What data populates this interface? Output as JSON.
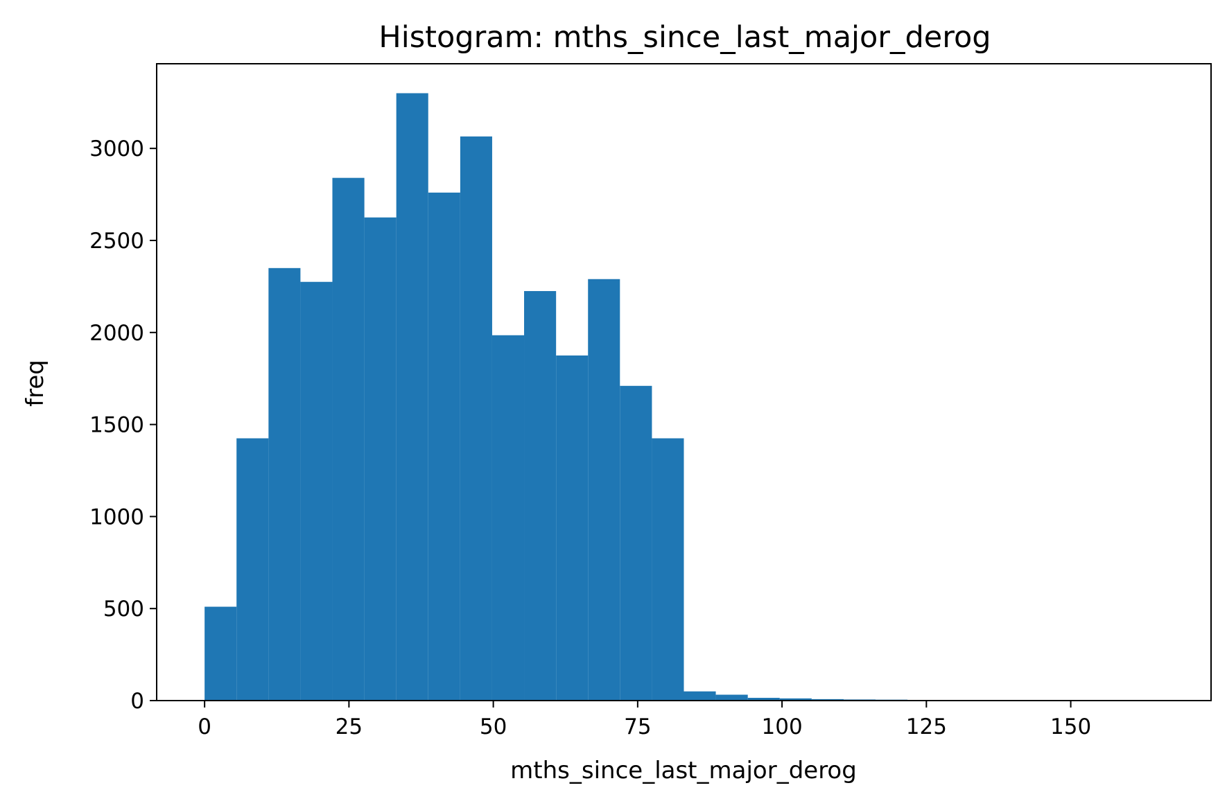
{
  "chart_data": {
    "type": "bar",
    "histogram": true,
    "title": "Histogram: mths_since_last_major_derog",
    "xlabel": "mths_since_last_major_derog",
    "ylabel": "freq",
    "bar_color": "#1f77b4",
    "grid": false,
    "xlim": [
      -8.3,
      174.3
    ],
    "ylim": [
      0,
      3460
    ],
    "xticks": [
      0,
      25,
      50,
      75,
      100,
      125,
      150
    ],
    "yticks": [
      0,
      500,
      1000,
      1500,
      2000,
      2500,
      3000
    ],
    "bin_edges": [
      0,
      5.53,
      11.07,
      16.6,
      22.13,
      27.67,
      33.2,
      38.73,
      44.27,
      49.8,
      55.33,
      60.87,
      66.4,
      71.93,
      77.47,
      83.0,
      88.53,
      94.07,
      99.6,
      105.13,
      110.67,
      116.2,
      121.73,
      127.27,
      132.8,
      138.33,
      143.87,
      149.4,
      154.93,
      160.47,
      166.0
    ],
    "values": [
      510,
      1425,
      2350,
      2275,
      2840,
      2625,
      3300,
      2760,
      3065,
      1985,
      2225,
      1875,
      2290,
      1710,
      1425,
      50,
      32,
      15,
      12,
      8,
      6,
      5,
      3,
      2,
      2,
      1,
      1,
      1,
      1,
      1
    ]
  }
}
